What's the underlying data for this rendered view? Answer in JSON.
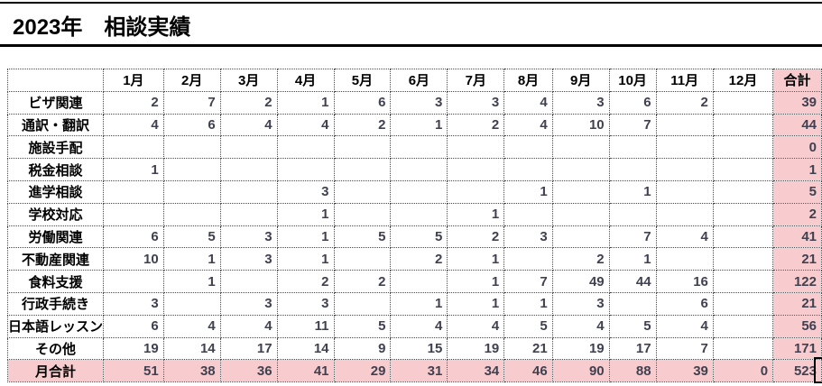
{
  "title": "2023年　相談実績",
  "table": {
    "corner": "",
    "months": [
      "1月",
      "2月",
      "3月",
      "4月",
      "5月",
      "6月",
      "7月",
      "8月",
      "9月",
      "10月",
      "11月",
      "12月"
    ],
    "total_label": "合計",
    "rows": [
      {
        "label": "ビザ関連",
        "values": [
          "2",
          "7",
          "2",
          "1",
          "6",
          "3",
          "3",
          "4",
          "3",
          "6",
          "2",
          ""
        ],
        "total": "39"
      },
      {
        "label": "通訳・翻訳",
        "values": [
          "4",
          "6",
          "4",
          "4",
          "2",
          "1",
          "2",
          "4",
          "10",
          "7",
          "",
          ""
        ],
        "total": "44"
      },
      {
        "label": "施設手配",
        "values": [
          "",
          "",
          "",
          "",
          "",
          "",
          "",
          "",
          "",
          "",
          "",
          ""
        ],
        "total": "0"
      },
      {
        "label": "税金相談",
        "values": [
          "1",
          "",
          "",
          "",
          "",
          "",
          "",
          "",
          "",
          "",
          "",
          ""
        ],
        "total": "1"
      },
      {
        "label": "進学相談",
        "values": [
          "",
          "",
          "",
          "3",
          "",
          "",
          "",
          "1",
          "",
          "1",
          "",
          ""
        ],
        "total": "5"
      },
      {
        "label": "学校対応",
        "values": [
          "",
          "",
          "",
          "1",
          "",
          "",
          "1",
          "",
          "",
          "",
          "",
          ""
        ],
        "total": "2"
      },
      {
        "label": "労働関連",
        "values": [
          "6",
          "5",
          "3",
          "1",
          "5",
          "5",
          "2",
          "3",
          "",
          "7",
          "4",
          ""
        ],
        "total": "41"
      },
      {
        "label": "不動産関連",
        "values": [
          "10",
          "1",
          "3",
          "1",
          "",
          "2",
          "1",
          "",
          "2",
          "1",
          "",
          ""
        ],
        "total": "21"
      },
      {
        "label": "食料支援",
        "values": [
          "",
          "1",
          "",
          "2",
          "2",
          "",
          "1",
          "7",
          "49",
          "44",
          "16",
          ""
        ],
        "total": "122"
      },
      {
        "label": "行政手続き",
        "values": [
          "3",
          "",
          "3",
          "3",
          "",
          "1",
          "1",
          "1",
          "3",
          "",
          "6",
          ""
        ],
        "total": "21"
      },
      {
        "label": "日本語レッスン",
        "values": [
          "6",
          "4",
          "4",
          "11",
          "5",
          "4",
          "4",
          "5",
          "4",
          "5",
          "4",
          ""
        ],
        "total": "56"
      },
      {
        "label": "その他",
        "values": [
          "19",
          "14",
          "17",
          "14",
          "9",
          "15",
          "19",
          "21",
          "19",
          "17",
          "7",
          ""
        ],
        "total": "171"
      }
    ],
    "footer": {
      "label": "月合計",
      "values": [
        "51",
        "38",
        "36",
        "41",
        "29",
        "31",
        "34",
        "46",
        "90",
        "88",
        "39",
        "0"
      ],
      "total": "523"
    }
  },
  "colors": {
    "accent_pink": "#F8CCCE",
    "number_text": "#3F4150"
  }
}
